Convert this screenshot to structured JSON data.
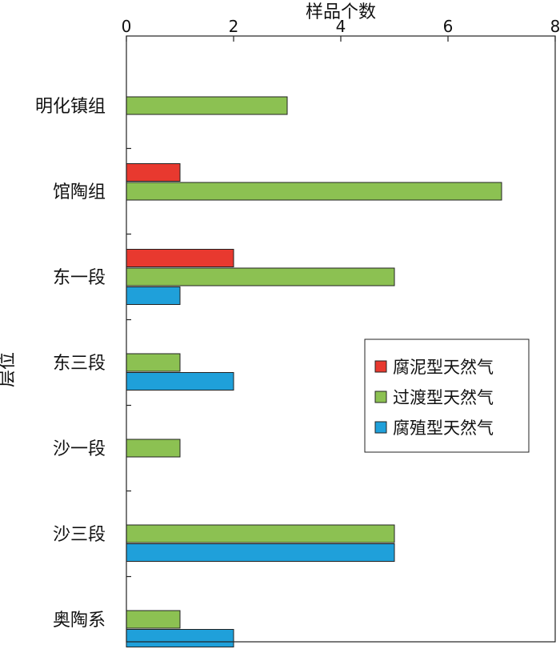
{
  "chart_data": {
    "type": "bar",
    "orientation": "horizontal",
    "xlabel": "样品个数",
    "ylabel": "层位",
    "xlim": [
      0,
      8
    ],
    "xticks": [
      0,
      2,
      4,
      6,
      8
    ],
    "xaxis_position": "top",
    "grid": false,
    "legend_position": "middle-right",
    "categories": [
      "明化镇组",
      "馆陶组",
      "东一段",
      "东三段",
      "沙一段",
      "沙三段",
      "奥陶系"
    ],
    "series": [
      {
        "name": "腐泥型天然气",
        "color": "#e8392f",
        "values": [
          0,
          1,
          2,
          0,
          0,
          0,
          0
        ]
      },
      {
        "name": "过渡型天然气",
        "color": "#8cc152",
        "values": [
          3,
          7,
          5,
          1,
          1,
          5,
          1
        ]
      },
      {
        "name": "腐殖型天然气",
        "color": "#1fa0da",
        "values": [
          0,
          0,
          1,
          2,
          0,
          5,
          2
        ]
      }
    ]
  }
}
